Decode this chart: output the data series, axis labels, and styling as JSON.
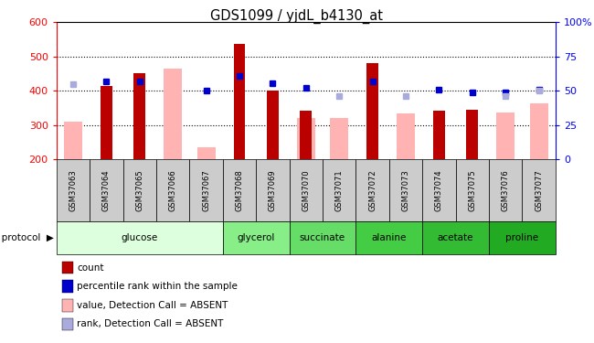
{
  "title": "GDS1099 / yjdL_b4130_at",
  "samples": [
    "GSM37063",
    "GSM37064",
    "GSM37065",
    "GSM37066",
    "GSM37067",
    "GSM37068",
    "GSM37069",
    "GSM37070",
    "GSM37071",
    "GSM37072",
    "GSM37073",
    "GSM37074",
    "GSM37075",
    "GSM37076",
    "GSM37077"
  ],
  "count_values": [
    null,
    415,
    453,
    null,
    null,
    537,
    400,
    342,
    null,
    480,
    null,
    342,
    345,
    null,
    null
  ],
  "pink_bar_values": [
    310,
    null,
    null,
    465,
    235,
    null,
    null,
    320,
    320,
    null,
    335,
    null,
    null,
    338,
    365
  ],
  "blue_dot_values": [
    null,
    428,
    428,
    null,
    400,
    443,
    422,
    410,
    null,
    428,
    null,
    405,
    397,
    397,
    403
  ],
  "lavender_dot_values": [
    420,
    null,
    null,
    null,
    null,
    null,
    null,
    null,
    385,
    null,
    385,
    null,
    null,
    385,
    400
  ],
  "ylim_left": [
    200,
    600
  ],
  "yticks_left": [
    200,
    300,
    400,
    500,
    600
  ],
  "yticks_right": [
    0,
    25,
    50,
    75,
    100
  ],
  "ytick_labels_right": [
    "0",
    "25",
    "50",
    "75",
    "100%"
  ],
  "bar_color": "#bb0000",
  "pink_color": "#ffb3b3",
  "blue_color": "#0000cc",
  "lavender_color": "#aaaadd",
  "sample_bg": "#cccccc",
  "group_info": [
    {
      "name": "glucose",
      "indices": [
        0,
        1,
        2,
        3,
        4
      ],
      "color": "#ddffdd"
    },
    {
      "name": "glycerol",
      "indices": [
        5,
        6
      ],
      "color": "#88ee88"
    },
    {
      "name": "succinate",
      "indices": [
        7,
        8
      ],
      "color": "#66dd66"
    },
    {
      "name": "alanine",
      "indices": [
        9,
        10
      ],
      "color": "#44cc44"
    },
    {
      "name": "acetate",
      "indices": [
        11,
        12
      ],
      "color": "#33bb33"
    },
    {
      "name": "proline",
      "indices": [
        13,
        14
      ],
      "color": "#22aa22"
    }
  ],
  "legend_items": [
    {
      "color": "#bb0000",
      "label": "count"
    },
    {
      "color": "#0000cc",
      "label": "percentile rank within the sample"
    },
    {
      "color": "#ffb3b3",
      "label": "value, Detection Call = ABSENT"
    },
    {
      "color": "#aaaadd",
      "label": "rank, Detection Call = ABSENT"
    }
  ]
}
